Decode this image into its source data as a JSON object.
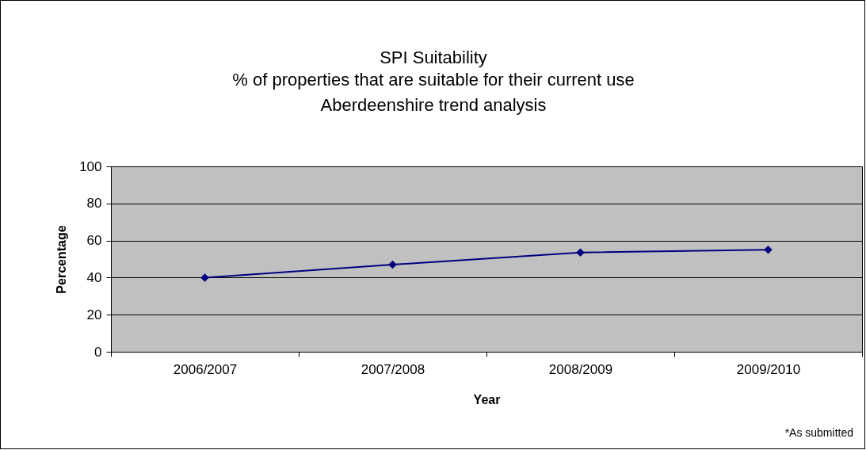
{
  "chart_data": {
    "type": "line",
    "title": "SPI Suitability",
    "subtitle": "% of properties that are suitable for their current use\nAberdeenshire trend analysis",
    "xlabel": "Year",
    "ylabel": "Percentage",
    "categories": [
      "2006/2007",
      "2007/2008",
      "2008/2009",
      "2009/2010"
    ],
    "series": [
      {
        "color": "#000080",
        "values": [
          40,
          47,
          53.5,
          55
        ]
      }
    ],
    "ylim": [
      0,
      100
    ],
    "yticks": [
      0,
      20,
      40,
      60,
      80,
      100
    ],
    "grid": "y",
    "marker": "diamond",
    "line_style": "solid",
    "annotations": [
      "*As submitted"
    ]
  }
}
